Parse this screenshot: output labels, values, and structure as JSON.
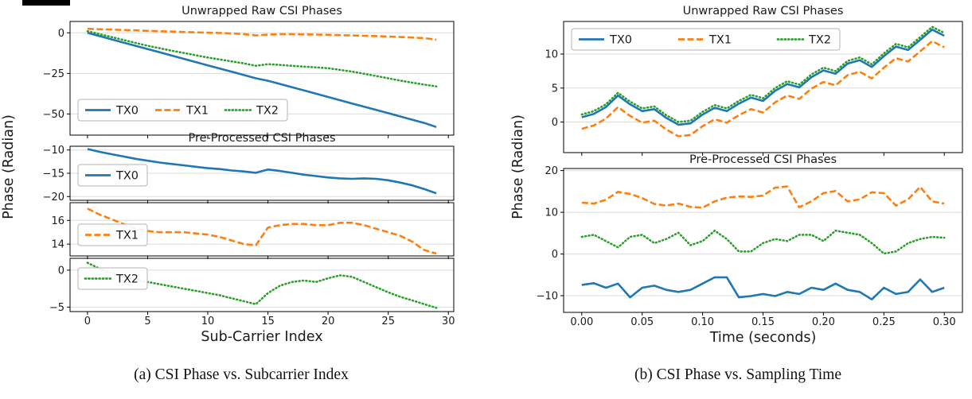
{
  "captions": {
    "a": "(a) CSI Phase vs. Subcarrier Index",
    "b": "(b) CSI Phase vs. Sampling Time"
  },
  "colors": {
    "TX0": "#1f77b4",
    "TX1": "#ff7f0e",
    "TX2": "#2ca02c"
  },
  "chart_data": [
    {
      "id": "fig_a",
      "type": "line",
      "title": "CSI Phase vs. Subcarrier Index",
      "xlabel": "Sub-Carrier Index",
      "ylabel": "Phase (Radian)",
      "x_start": 0,
      "x_step": 1,
      "xlim": [
        -1.45,
        30.45
      ],
      "xticks": [
        0,
        5,
        10,
        15,
        20,
        25,
        30
      ],
      "xtick_labels": [
        "0",
        "5",
        "10",
        "15",
        "20",
        "25",
        "30"
      ],
      "grid": "horizontal",
      "subplots": [
        {
          "title": "Unwrapped Raw CSI Phases",
          "ylim": [
            -63,
            7
          ],
          "yticks": [
            0,
            -25,
            -50
          ],
          "legend_entries": [
            "TX0",
            "TX1",
            "TX2"
          ],
          "legend_position": "lower-left-horizontal",
          "series": [
            {
              "name": "TX0",
              "color": "#1f77b4",
              "dash": "solid",
              "values": [
                0,
                -2,
                -4,
                -6,
                -8,
                -10,
                -12,
                -14,
                -16,
                -18,
                -20,
                -22,
                -24,
                -26,
                -28,
                -29.5,
                -31.5,
                -33.5,
                -35.5,
                -37.5,
                -39.5,
                -41.5,
                -43.5,
                -45.5,
                -47.5,
                -49.5,
                -51.5,
                -53.5,
                -55.5,
                -58
              ]
            },
            {
              "name": "TX1",
              "color": "#ff7f0e",
              "dash": "dashed",
              "values": [
                2.5,
                2.2,
                2.0,
                1.7,
                1.5,
                1.2,
                1.0,
                0.8,
                0.5,
                0.3,
                0.1,
                -0.1,
                -0.4,
                -0.8,
                -1.6,
                -1.1,
                -0.9,
                -0.9,
                -1.0,
                -1.1,
                -1.2,
                -1.4,
                -1.6,
                -1.8,
                -2.0,
                -2.3,
                -2.6,
                -2.9,
                -3.3,
                -4.2
              ]
            },
            {
              "name": "TX2",
              "color": "#2ca02c",
              "dash": "dotted",
              "values": [
                1.0,
                -0.8,
                -2.6,
                -4.4,
                -6.2,
                -8.0,
                -9.5,
                -11.0,
                -12.4,
                -13.8,
                -15.2,
                -16.4,
                -17.6,
                -18.8,
                -20.3,
                -19.3,
                -19.8,
                -20.3,
                -20.8,
                -21.3,
                -21.8,
                -22.8,
                -23.9,
                -25.2,
                -26.6,
                -28.0,
                -29.4,
                -30.7,
                -31.9,
                -33.0
              ]
            }
          ]
        },
        {
          "title": "Pre-Processed CSI Phases",
          "ylim": [
            -20.8,
            -9.2
          ],
          "yticks": [
            -10,
            -15,
            -20
          ],
          "legend_entries": [
            "TX0"
          ],
          "legend_position": "left",
          "series": [
            {
              "name": "TX0",
              "color": "#1f77b4",
              "dash": "solid",
              "values": [
                -9.8,
                -10.4,
                -10.9,
                -11.4,
                -11.9,
                -12.3,
                -12.7,
                -13.0,
                -13.3,
                -13.6,
                -13.9,
                -14.1,
                -14.4,
                -14.6,
                -14.9,
                -14.2,
                -14.5,
                -14.9,
                -15.3,
                -15.6,
                -15.9,
                -16.1,
                -16.2,
                -16.1,
                -16.2,
                -16.5,
                -17.0,
                -17.6,
                -18.4,
                -19.3
              ]
            }
          ]
        },
        {
          "title": "",
          "ylim": [
            13,
            17.5
          ],
          "yticks": [
            16,
            14
          ],
          "legend_entries": [
            "TX1"
          ],
          "legend_position": "left",
          "series": [
            {
              "name": "TX1",
              "color": "#ff7f0e",
              "dash": "dashed",
              "values": [
                17.0,
                16.5,
                16.1,
                15.7,
                15.3,
                15.1,
                15.0,
                15.0,
                15.0,
                14.9,
                14.8,
                14.6,
                14.3,
                14.0,
                13.9,
                15.4,
                15.6,
                15.7,
                15.7,
                15.6,
                15.6,
                15.8,
                15.8,
                15.6,
                15.3,
                15.0,
                14.7,
                14.2,
                13.5,
                13.2
              ]
            }
          ]
        },
        {
          "title": "",
          "ylim": [
            -5.6,
            1.6
          ],
          "yticks": [
            0,
            -5
          ],
          "legend_entries": [
            "TX2"
          ],
          "legend_position": "left",
          "series": [
            {
              "name": "TX2",
              "color": "#2ca02c",
              "dash": "dotted",
              "values": [
                1.0,
                0.2,
                -0.4,
                -0.9,
                -1.3,
                -1.6,
                -1.9,
                -2.2,
                -2.5,
                -2.8,
                -3.1,
                -3.4,
                -3.8,
                -4.2,
                -4.6,
                -3.1,
                -2.1,
                -1.6,
                -1.4,
                -1.6,
                -1.1,
                -0.7,
                -0.9,
                -1.6,
                -2.3,
                -3.0,
                -3.6,
                -4.1,
                -4.6,
                -5.1
              ]
            }
          ]
        }
      ]
    },
    {
      "id": "fig_b",
      "type": "line",
      "title": "CSI Phase vs. Sampling Time",
      "xlabel": "Time (seconds)",
      "ylabel": "Phase (Radian)",
      "x_start": 0,
      "x_step": 0.01,
      "xlim": [
        -0.015,
        0.315
      ],
      "xticks": [
        0,
        0.05,
        0.1,
        0.15,
        0.2,
        0.25,
        0.3
      ],
      "xtick_labels": [
        "0.00",
        "0.05",
        "0.10",
        "0.15",
        "0.20",
        "0.25",
        "0.30"
      ],
      "grid": "horizontal",
      "subplots": [
        {
          "title": "Unwrapped Raw CSI Phases",
          "ylim": [
            -4.5,
            14.8
          ],
          "yticks": [
            10,
            5,
            0
          ],
          "legend_entries": [
            "TX0",
            "TX1",
            "TX2"
          ],
          "legend_position": "upper-left-horizontal",
          "series": [
            {
              "name": "TX0",
              "color": "#1f77b4",
              "dash": "solid",
              "values": [
                0.7,
                1.2,
                2.2,
                3.9,
                2.6,
                1.6,
                1.9,
                0.6,
                -0.4,
                -0.2,
                1.1,
                2.1,
                1.6,
                2.7,
                3.6,
                3.1,
                4.6,
                5.6,
                5.1,
                6.6,
                7.6,
                7.1,
                8.6,
                9.1,
                8.1,
                9.7,
                11.1,
                10.6,
                12.1,
                13.6,
                12.7
              ]
            },
            {
              "name": "TX1",
              "color": "#ff7f0e",
              "dash": "dashed",
              "values": [
                -1.0,
                -0.5,
                0.5,
                2.2,
                0.9,
                -0.1,
                0.2,
                -1.1,
                -2.1,
                -1.9,
                -0.6,
                0.4,
                -0.1,
                1.0,
                1.9,
                1.4,
                2.9,
                3.9,
                3.4,
                4.9,
                5.9,
                5.4,
                6.9,
                7.4,
                6.4,
                8.0,
                9.4,
                8.9,
                10.4,
                11.9,
                11.0
              ]
            },
            {
              "name": "TX2",
              "color": "#2ca02c",
              "dash": "dotted",
              "values": [
                1.1,
                1.6,
                2.6,
                4.3,
                3.0,
                2.0,
                2.3,
                1.0,
                0.0,
                0.2,
                1.5,
                2.5,
                2.0,
                3.1,
                4.0,
                3.5,
                5.0,
                6.0,
                5.5,
                7.0,
                8.0,
                7.5,
                9.0,
                9.5,
                8.5,
                10.1,
                11.5,
                11.0,
                12.5,
                14.0,
                13.1
              ]
            }
          ]
        },
        {
          "title": "Pre-Processed CSI Phases",
          "ylim": [
            -14,
            20.5
          ],
          "yticks": [
            20,
            10,
            0,
            -10
          ],
          "series": [
            {
              "name": "TX0",
              "color": "#1f77b4",
              "dash": "solid",
              "values": [
                -7.4,
                -7.0,
                -8.1,
                -7.1,
                -10.4,
                -8.1,
                -7.6,
                -8.6,
                -9.1,
                -8.6,
                -7.1,
                -5.6,
                -5.6,
                -10.4,
                -10.1,
                -9.6,
                -10.1,
                -9.1,
                -9.6,
                -8.1,
                -8.6,
                -7.1,
                -8.6,
                -9.1,
                -10.9,
                -8.1,
                -9.6,
                -9.1,
                -6.1,
                -9.1,
                -8.1
              ]
            },
            {
              "name": "TX1",
              "color": "#ff7f0e",
              "dash": "dashed",
              "values": [
                12.3,
                12.1,
                13.0,
                14.9,
                14.4,
                13.4,
                12.0,
                11.6,
                12.1,
                11.3,
                11.1,
                12.6,
                13.5,
                13.8,
                13.7,
                14.0,
                15.9,
                16.2,
                11.2,
                12.6,
                14.6,
                15.1,
                12.6,
                13.1,
                14.8,
                14.6,
                11.6,
                13.1,
                16.1,
                12.6,
                12.1
              ]
            },
            {
              "name": "TX2",
              "color": "#2ca02c",
              "dash": "dotted",
              "values": [
                4.1,
                4.6,
                3.1,
                1.6,
                4.1,
                4.6,
                2.6,
                3.6,
                5.1,
                2.1,
                3.1,
                5.6,
                3.6,
                0.6,
                0.6,
                2.6,
                3.6,
                3.1,
                4.6,
                4.6,
                3.1,
                5.6,
                5.1,
                4.6,
                2.6,
                0.1,
                0.6,
                2.6,
                3.6,
                4.1,
                3.9
              ]
            }
          ]
        }
      ]
    }
  ]
}
